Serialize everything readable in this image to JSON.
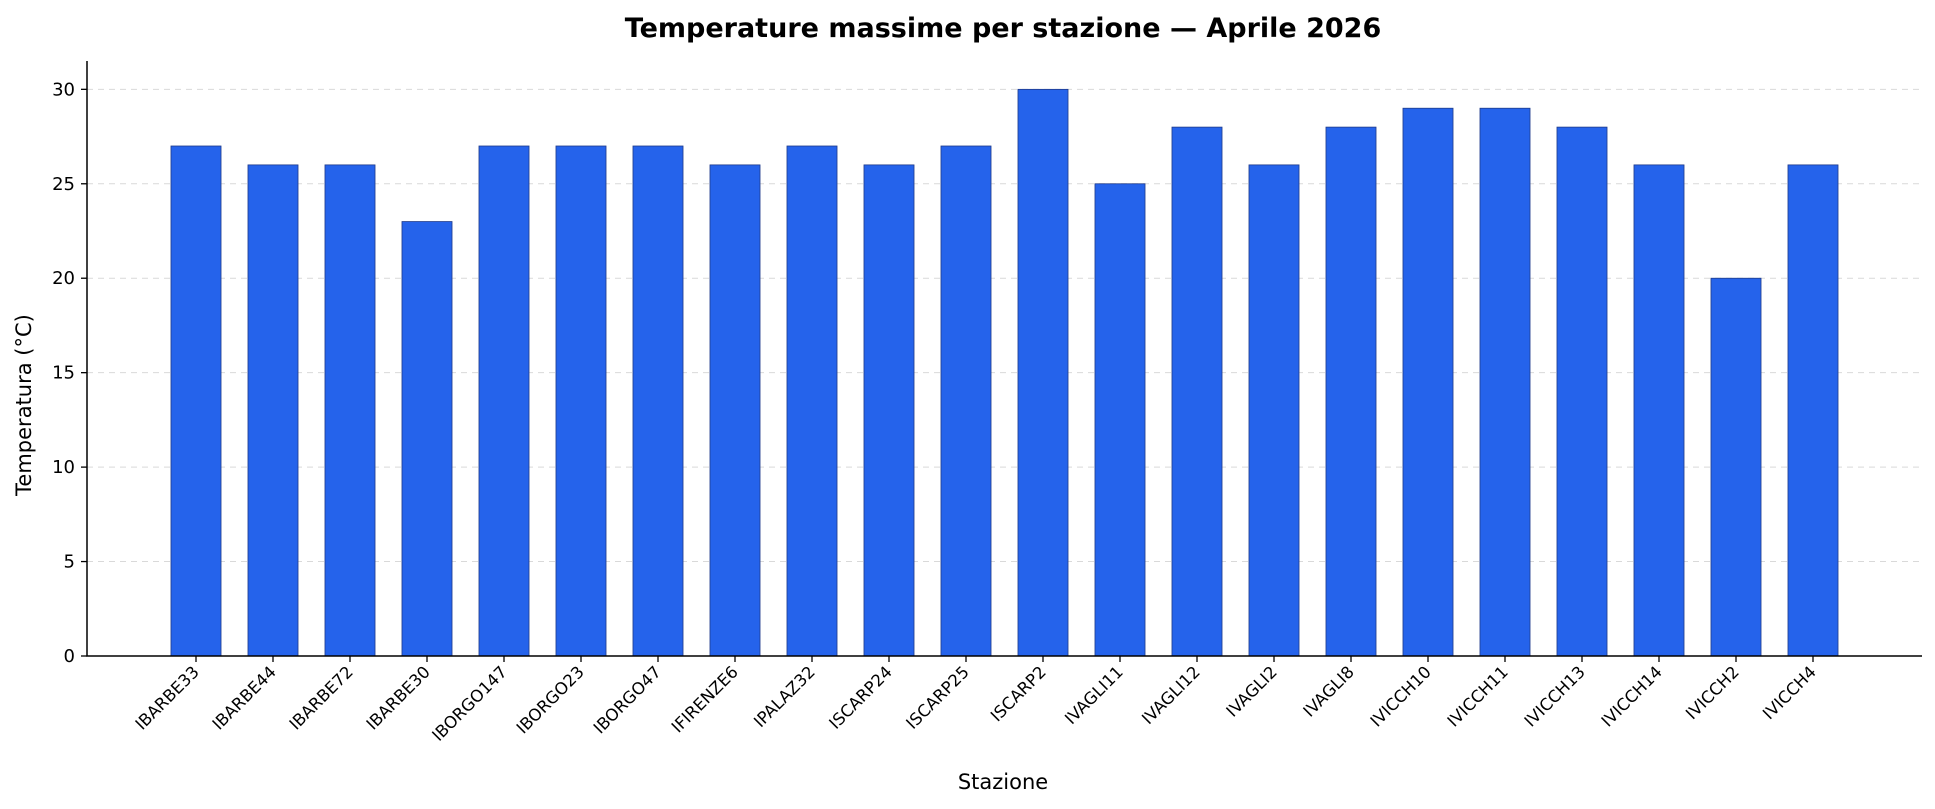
{
  "chart_data": {
    "type": "bar",
    "title": "Temperature massime per stazione — Aprile 2026",
    "xlabel": "Stazione",
    "ylabel": "Temperatura (°C)",
    "ylim": [
      0,
      31.5
    ],
    "yticks": [
      0,
      5,
      10,
      15,
      20,
      25,
      30
    ],
    "grid": "y",
    "bar_color": "#2563eb",
    "categories": [
      "IBARBE33",
      "IBARBE44",
      "IBARBE72",
      "IBARBE30",
      "IBORGO147",
      "IBORGO23",
      "IBORGO47",
      "IFIRENZE6",
      "IPALAZ32",
      "ISCARP24",
      "ISCARP25",
      "ISCARP2",
      "IVAGLI11",
      "IVAGLI12",
      "IVAGLI2",
      "IVAGLI8",
      "IVICCH10",
      "IVICCH11",
      "IVICCH13",
      "IVICCH14",
      "IVICCH2",
      "IVICCH4"
    ],
    "values": [
      27,
      26,
      26,
      23,
      27,
      27,
      27,
      26,
      27,
      26,
      27,
      30,
      25,
      28,
      26,
      28,
      29,
      29,
      28,
      26,
      20,
      26
    ]
  }
}
